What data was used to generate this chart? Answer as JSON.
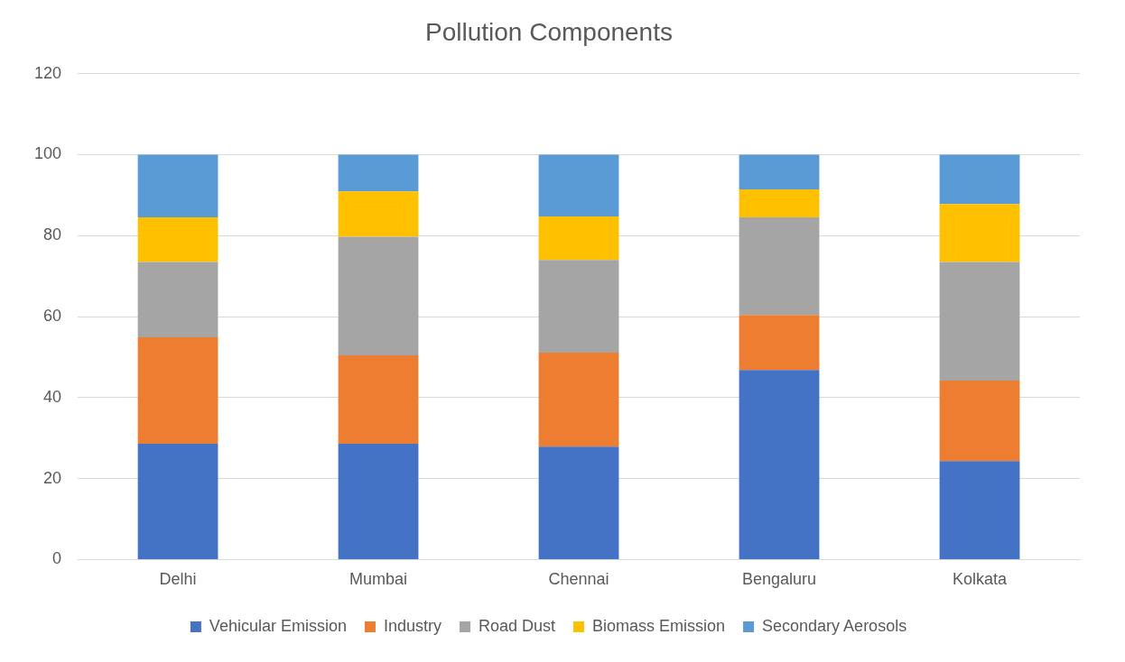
{
  "chart_data": {
    "type": "bar",
    "title": "Pollution Components",
    "categories": [
      "Delhi",
      "Mumbai",
      "Chennai",
      "Bengaluru",
      "Kolkata"
    ],
    "stacked": true,
    "series": [
      {
        "name": "Vehicular Emission",
        "color": "#4472c4",
        "values": [
          28.6,
          28.6,
          27.9,
          46.8,
          24.3
        ]
      },
      {
        "name": "Industry",
        "color": "#ed7d31",
        "values": [
          26.3,
          21.8,
          23.2,
          13.6,
          19.9
        ]
      },
      {
        "name": "Road Dust",
        "color": "#a5a5a5",
        "values": [
          18.6,
          29.3,
          22.9,
          24.1,
          29.3
        ]
      },
      {
        "name": "Biomass Emission",
        "color": "#ffc000",
        "values": [
          11,
          11.2,
          10.7,
          6.9,
          14.3
        ]
      },
      {
        "name": "Secondary Aerosols",
        "color": "#5b9bd5",
        "values": [
          15.5,
          9.1,
          15.3,
          8.6,
          12.2
        ]
      }
    ],
    "ylim": [
      0,
      120
    ],
    "yticks": [
      0,
      20,
      40,
      60,
      80,
      100,
      120
    ],
    "grid": "y",
    "legend": "bottom"
  }
}
